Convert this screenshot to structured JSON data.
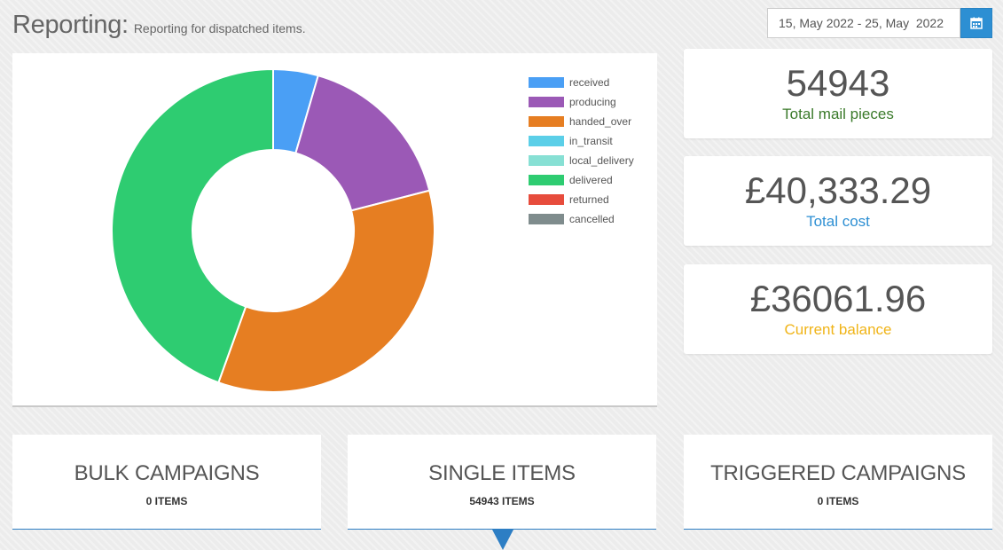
{
  "header": {
    "title": "Reporting:",
    "subtitle": "Reporting for dispatched items."
  },
  "date_range": {
    "value": "15, May 2022 - 25, May  2022",
    "icon": "calendar-icon"
  },
  "chart_data": {
    "type": "pie",
    "variant": "doughnut",
    "legend_position": "right",
    "labels": [
      "received",
      "producing",
      "handed_over",
      "in_transit",
      "local_delivery",
      "delivered",
      "returned",
      "cancelled"
    ],
    "values": [
      4.5,
      16.5,
      34.5,
      0,
      0,
      44.5,
      0,
      0
    ],
    "value_units": "approximate percent of total",
    "colors": [
      "#4a9ff5",
      "#9b59b6",
      "#e67e22",
      "#5bcfe8",
      "#87e0d4",
      "#2ecc71",
      "#e74c3c",
      "#7f8c8d"
    ]
  },
  "stats": [
    {
      "value": "54943",
      "label": "Total mail pieces",
      "label_color": "#3a7a2a"
    },
    {
      "value": "£40,333.29",
      "label": "Total cost",
      "label_color": "#2d8fd3"
    },
    {
      "value": "£36061.96",
      "label": "Current balance",
      "label_color": "#f0b418"
    }
  ],
  "tabs": [
    {
      "title": "BULK CAMPAIGNS",
      "count": "0 ITEMS",
      "active": false
    },
    {
      "title": "SINGLE ITEMS",
      "count": "54943 ITEMS",
      "active": true
    },
    {
      "title": "TRIGGERED CAMPAIGNS",
      "count": "0 ITEMS",
      "active": false
    }
  ],
  "colors": {
    "accent": "#2d8fd3",
    "tab_underline": "#2d7ec4"
  }
}
